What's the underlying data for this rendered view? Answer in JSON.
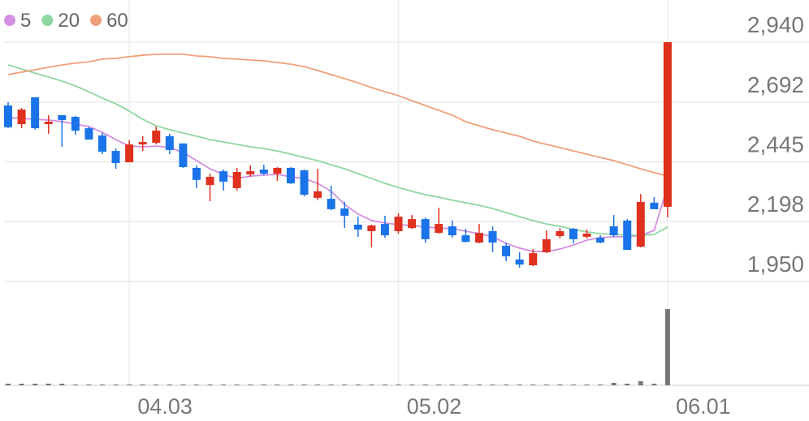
{
  "chart_data": {
    "type": "candlestick",
    "categories": [
      null,
      null,
      null,
      null,
      null,
      null,
      null,
      null,
      null,
      "04.03",
      null,
      null,
      null,
      null,
      null,
      null,
      null,
      null,
      null,
      null,
      null,
      null,
      null,
      null,
      null,
      null,
      null,
      null,
      null,
      "05.02",
      null,
      null,
      null,
      null,
      null,
      null,
      null,
      null,
      null,
      null,
      null,
      null,
      null,
      null,
      null,
      null,
      null,
      null,
      null,
      "06.01"
    ],
    "open": [
      2678,
      2601,
      2712,
      2601,
      2638,
      2631,
      2584,
      2554,
      2490,
      2443,
      2517,
      2524,
      2551,
      2521,
      2420,
      2349,
      2406,
      2336,
      2393,
      2413,
      2396,
      2420,
      2410,
      2296,
      2292,
      2252,
      2185,
      2158,
      2188,
      2158,
      2171,
      2208,
      2151,
      2178,
      2141,
      2111,
      2158,
      2098,
      2041,
      2017,
      2071,
      2138,
      2168,
      2135,
      2131,
      2178,
      2202,
      2094,
      2276,
      2259
    ],
    "high": [
      2692,
      2668,
      2712,
      2638,
      2638,
      2635,
      2591,
      2564,
      2500,
      2534,
      2551,
      2591,
      2561,
      2521,
      2430,
      2396,
      2413,
      2420,
      2430,
      2433,
      2423,
      2423,
      2413,
      2416,
      2346,
      2279,
      2218,
      2185,
      2222,
      2232,
      2225,
      2215,
      2255,
      2202,
      2168,
      2188,
      2178,
      2111,
      2071,
      2084,
      2161,
      2171,
      2171,
      2165,
      2141,
      2225,
      2208,
      2312,
      2299,
      2940
    ],
    "low": [
      2584,
      2584,
      2578,
      2561,
      2507,
      2557,
      2537,
      2477,
      2416,
      2443,
      2490,
      2517,
      2477,
      2420,
      2336,
      2282,
      2326,
      2326,
      2383,
      2390,
      2366,
      2353,
      2302,
      2286,
      2245,
      2171,
      2135,
      2091,
      2131,
      2148,
      2168,
      2111,
      2148,
      2131,
      2111,
      2108,
      2071,
      2034,
      2007,
      2014,
      2067,
      2128,
      2108,
      2128,
      2108,
      2135,
      2081,
      2091,
      2249,
      2215
    ],
    "close": [
      2588,
      2661,
      2584,
      2611,
      2618,
      2574,
      2537,
      2487,
      2440,
      2517,
      2527,
      2574,
      2494,
      2423,
      2370,
      2383,
      2363,
      2403,
      2406,
      2396,
      2420,
      2356,
      2309,
      2323,
      2249,
      2222,
      2165,
      2182,
      2141,
      2218,
      2208,
      2125,
      2188,
      2141,
      2114,
      2151,
      2111,
      2054,
      2020,
      2067,
      2125,
      2158,
      2125,
      2148,
      2111,
      2141,
      2081,
      2279,
      2249,
      2940
    ],
    "up_color": "#e0301e",
    "down_color": "#1a73e8",
    "series": [
      {
        "name": "5",
        "color": "#d48fe0",
        "values": [
          2628,
          2625,
          2621,
          2618,
          2611,
          2601,
          2591,
          2567,
          2537,
          2510,
          2507,
          2510,
          2504,
          2484,
          2450,
          2416,
          2393,
          2376,
          2386,
          2390,
          2393,
          2383,
          2376,
          2356,
          2323,
          2269,
          2229,
          2202,
          2192,
          2185,
          2182,
          2175,
          2171,
          2168,
          2158,
          2148,
          2135,
          2108,
          2088,
          2074,
          2074,
          2084,
          2101,
          2121,
          2131,
          2135,
          2135,
          2141,
          2161,
          2343
        ]
      },
      {
        "name": "20",
        "color": "#8fd6a0",
        "values": [
          2846,
          2829,
          2812,
          2796,
          2779,
          2759,
          2735,
          2708,
          2685,
          2655,
          2621,
          2594,
          2578,
          2564,
          2551,
          2537,
          2527,
          2517,
          2507,
          2500,
          2490,
          2477,
          2463,
          2450,
          2433,
          2416,
          2396,
          2376,
          2356,
          2339,
          2323,
          2309,
          2299,
          2286,
          2276,
          2265,
          2252,
          2235,
          2218,
          2202,
          2188,
          2178,
          2165,
          2155,
          2148,
          2145,
          2141,
          2141,
          2145,
          2175
        ]
      },
      {
        "name": "60",
        "color": "#f0a07a",
        "values": [
          2806,
          2816,
          2826,
          2836,
          2846,
          2853,
          2859,
          2870,
          2873,
          2880,
          2886,
          2890,
          2890,
          2890,
          2883,
          2880,
          2873,
          2870,
          2866,
          2863,
          2856,
          2849,
          2839,
          2823,
          2806,
          2789,
          2772,
          2752,
          2735,
          2719,
          2698,
          2678,
          2658,
          2638,
          2611,
          2594,
          2578,
          2564,
          2551,
          2531,
          2517,
          2504,
          2490,
          2477,
          2463,
          2450,
          2433,
          2416,
          2400,
          2386
        ]
      }
    ],
    "volume": {
      "color": "#777777",
      "ylim": [
        0,
        128
      ],
      "values": [
        2,
        2,
        2,
        2,
        2,
        1,
        1,
        1,
        1,
        1,
        1,
        1,
        1,
        1,
        1,
        1,
        1,
        1,
        1,
        1,
        1,
        1,
        1,
        1,
        1,
        1,
        1,
        1,
        1,
        1,
        1,
        1,
        1,
        1,
        1,
        1,
        1,
        1,
        1,
        1,
        1,
        1,
        1,
        1,
        1,
        3,
        2,
        5,
        2,
        94
      ]
    },
    "ylim": [
      1950,
      3100
    ],
    "yticks": [
      {
        "value": 1950,
        "label": "1,950"
      },
      {
        "value": 2198,
        "label": "2,198"
      },
      {
        "value": 2445,
        "label": "2,445"
      },
      {
        "value": 2692,
        "label": "2,692"
      },
      {
        "value": 2940,
        "label": "2,940"
      }
    ],
    "grid": true,
    "legend": "top-left"
  }
}
